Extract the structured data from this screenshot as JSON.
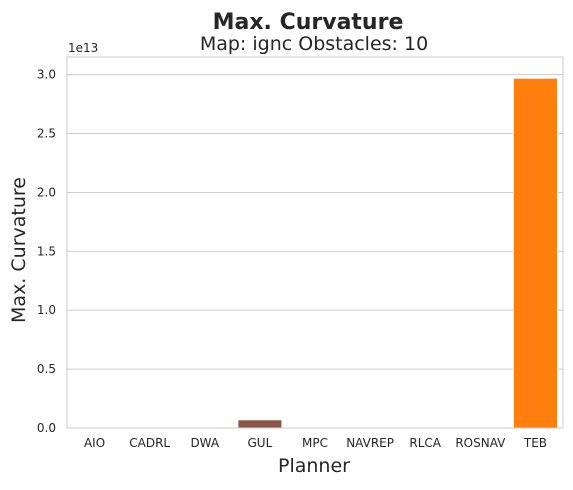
{
  "chart_data": {
    "type": "bar",
    "title": "Max. Curvature",
    "subtitle": "Map: ignc Obstacles: 10",
    "xlabel": "Planner",
    "ylabel": "Max. Curvature",
    "y_scale_label": "1e13",
    "y_unit_multiplier": 10000000000000.0,
    "ylim": [
      0,
      3.15
    ],
    "yticks": [
      0.0,
      0.5,
      1.0,
      1.5,
      2.0,
      2.5,
      3.0
    ],
    "ytick_labels": [
      "0.0",
      "0.5",
      "1.0",
      "1.5",
      "2.0",
      "2.5",
      "3.0"
    ],
    "grid": "horizontal",
    "categories": [
      "AIO",
      "CADRL",
      "DWA",
      "GUL",
      "MPC",
      "NAVREP",
      "RLCA",
      "ROSNAV",
      "TEB"
    ],
    "values": [
      0,
      0,
      0,
      0.07,
      0,
      0,
      0,
      0,
      2.97
    ],
    "colors": [
      "#1f77b4",
      "#2ca02c",
      "#d62728",
      "#8c564b",
      "#9467bd",
      "#e377c2",
      "#7f7f7f",
      "#bcbd22",
      "#ff7f0e"
    ]
  }
}
